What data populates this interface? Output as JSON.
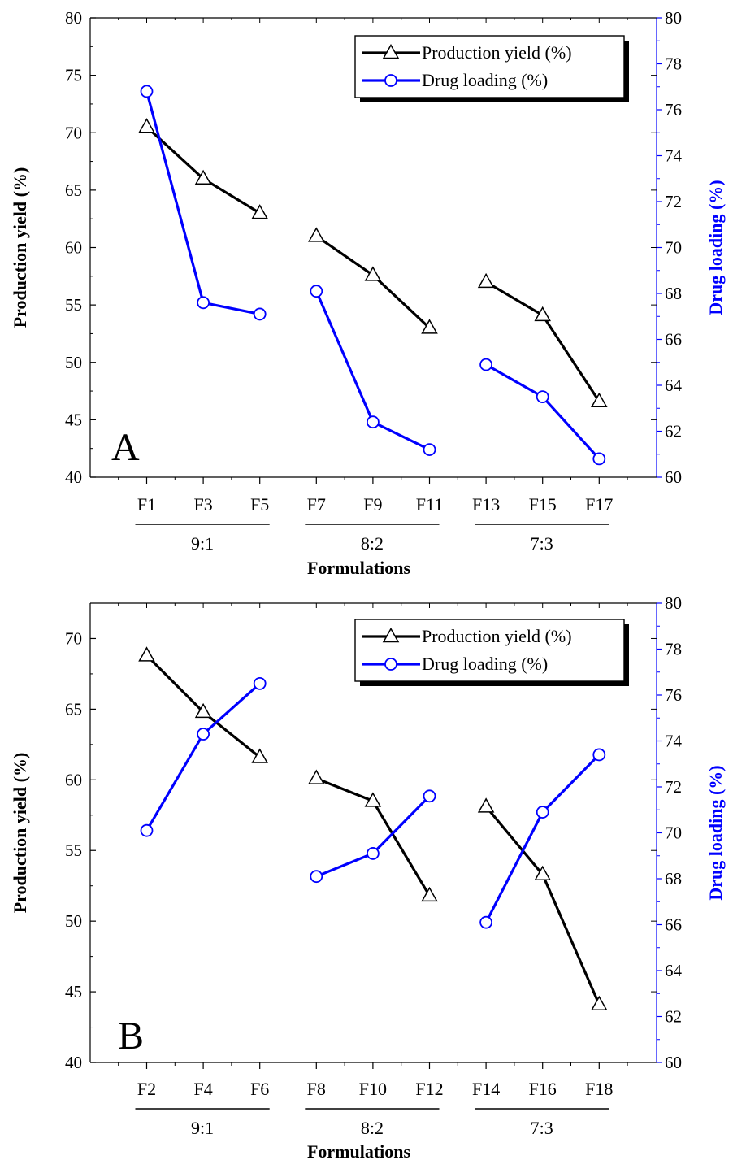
{
  "chart_data": [
    {
      "type": "line",
      "panel_label": "A",
      "categories": [
        "F1",
        "F3",
        "F5",
        "F7",
        "F9",
        "F11",
        "F13",
        "F15",
        "F17"
      ],
      "groups": [
        {
          "label": "9:1",
          "start": 0,
          "end": 2
        },
        {
          "label": "8:2",
          "start": 3,
          "end": 5
        },
        {
          "label": "7:3",
          "start": 6,
          "end": 8
        }
      ],
      "xlabel": "Formulations",
      "ylabel_left": "Production yield (%)",
      "ylabel_right": "Drug loading (%)",
      "ylim_left": [
        40,
        80
      ],
      "ylim_right": [
        60,
        80
      ],
      "yticks_left": [
        "40",
        "45",
        "50",
        "55",
        "60",
        "65",
        "70",
        "75",
        "80"
      ],
      "yticks_right": [
        "60",
        "62",
        "64",
        "66",
        "68",
        "70",
        "72",
        "74",
        "76",
        "78",
        "80"
      ],
      "legend_position": "top-right",
      "series": [
        {
          "name": "Production yield (%)",
          "axis": "left",
          "marker": "triangle",
          "color": "#000000",
          "values": [
            70.5,
            66.0,
            63.0,
            61.0,
            57.6,
            53.0,
            57.0,
            54.1,
            46.6
          ]
        },
        {
          "name": "Drug loading (%)",
          "axis": "right",
          "marker": "circle",
          "color": "#0000ff",
          "values": [
            76.8,
            67.6,
            67.1,
            68.1,
            62.4,
            61.2,
            64.9,
            63.5,
            60.8
          ]
        }
      ]
    },
    {
      "type": "line",
      "panel_label": "B",
      "categories": [
        "F2",
        "F4",
        "F6",
        "F8",
        "F10",
        "F12",
        "F14",
        "F16",
        "F18"
      ],
      "groups": [
        {
          "label": "9:1",
          "start": 0,
          "end": 2
        },
        {
          "label": "8:2",
          "start": 3,
          "end": 5
        },
        {
          "label": "7:3",
          "start": 6,
          "end": 8
        }
      ],
      "xlabel": "Formulations",
      "ylabel_left": "Production yield (%)",
      "ylabel_right": "Drug loading (%)",
      "ylim_left": [
        40,
        72.5
      ],
      "ylim_right": [
        60,
        80
      ],
      "yticks_left": [
        "40",
        "45",
        "50",
        "55",
        "60",
        "65",
        "70"
      ],
      "yticks_right": [
        "60",
        "62",
        "64",
        "66",
        "68",
        "70",
        "72",
        "74",
        "76",
        "78",
        "80"
      ],
      "legend_position": "top-right",
      "series": [
        {
          "name": "Production yield (%)",
          "axis": "left",
          "marker": "triangle",
          "color": "#000000",
          "values": [
            68.8,
            64.8,
            61.6,
            60.1,
            58.5,
            51.8,
            58.1,
            53.3,
            44.1
          ]
        },
        {
          "name": "Drug loading (%)",
          "axis": "right",
          "marker": "circle",
          "color": "#0000ff",
          "values": [
            70.1,
            74.3,
            76.5,
            68.1,
            69.1,
            71.6,
            66.1,
            70.9,
            73.4
          ]
        }
      ]
    }
  ]
}
